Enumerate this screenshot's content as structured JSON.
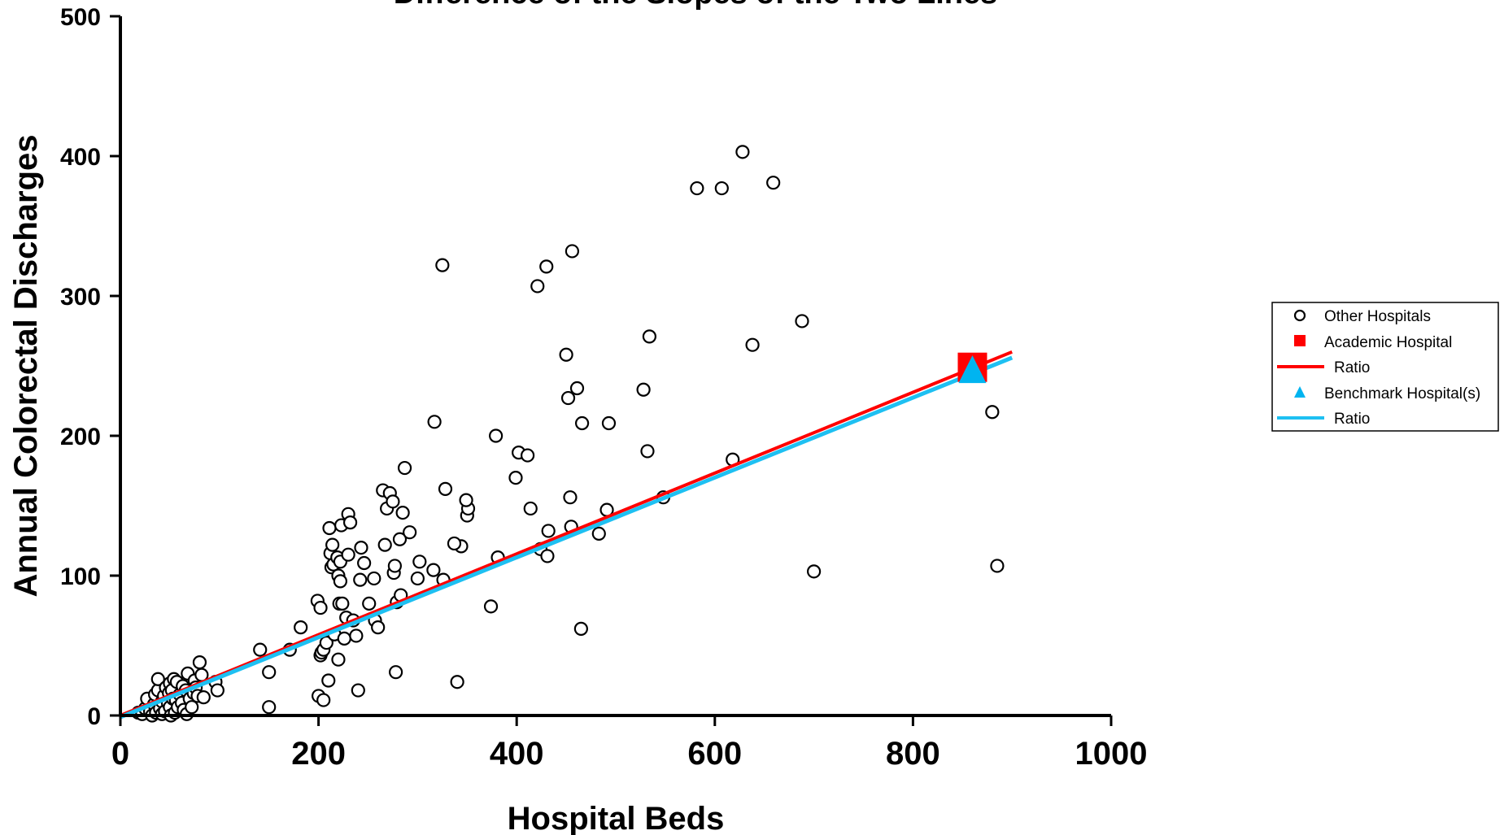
{
  "chart_data": {
    "type": "scatter",
    "title": "Difference of the Slopes of the Two Lines",
    "xlabel": "Hospital Beds",
    "ylabel": "Annual Colorectal Discharges",
    "xlim": [
      0,
      1000
    ],
    "ylim": [
      0,
      500
    ],
    "x_ticks": [
      0,
      200,
      400,
      600,
      800,
      1000
    ],
    "y_ticks": [
      0,
      100,
      200,
      300,
      400,
      500
    ],
    "grid": false,
    "legend_position": "right",
    "colors": {
      "other": "#ffffff",
      "academic": "#ff0000",
      "academic_line": "#ff0000",
      "benchmark": "#00b4f0",
      "benchmark_line": "#1ec0f2"
    },
    "series": [
      {
        "name": "Other Hospitals",
        "marker": "circle-open",
        "points": [
          [
            18,
            2
          ],
          [
            22,
            1
          ],
          [
            25,
            5
          ],
          [
            27,
            12
          ],
          [
            30,
            3
          ],
          [
            32,
            0
          ],
          [
            34,
            8
          ],
          [
            35,
            15
          ],
          [
            36,
            2
          ],
          [
            38,
            18
          ],
          [
            38,
            26
          ],
          [
            40,
            5
          ],
          [
            42,
            10
          ],
          [
            42,
            1
          ],
          [
            44,
            14
          ],
          [
            45,
            3
          ],
          [
            46,
            20
          ],
          [
            48,
            9
          ],
          [
            49,
            16
          ],
          [
            50,
            6
          ],
          [
            50,
            23
          ],
          [
            51,
            0
          ],
          [
            52,
            18
          ],
          [
            53,
            12
          ],
          [
            54,
            26
          ],
          [
            55,
            2
          ],
          [
            56,
            11
          ],
          [
            57,
            24
          ],
          [
            58,
            6
          ],
          [
            60,
            15
          ],
          [
            62,
            9
          ],
          [
            63,
            21
          ],
          [
            64,
            4
          ],
          [
            66,
            18
          ],
          [
            67,
            1
          ],
          [
            68,
            30
          ],
          [
            70,
            12
          ],
          [
            72,
            6
          ],
          [
            74,
            16
          ],
          [
            75,
            25
          ],
          [
            76,
            20
          ],
          [
            78,
            14
          ],
          [
            80,
            38
          ],
          [
            82,
            29
          ],
          [
            84,
            13
          ],
          [
            96,
            24
          ],
          [
            98,
            18
          ],
          [
            141,
            47
          ],
          [
            150,
            31
          ],
          [
            150,
            6
          ],
          [
            171,
            47
          ],
          [
            182,
            63
          ],
          [
            199,
            82
          ],
          [
            200,
            14
          ],
          [
            202,
            77
          ],
          [
            202,
            43
          ],
          [
            203,
            45
          ],
          [
            205,
            11
          ],
          [
            205,
            47
          ],
          [
            208,
            52
          ],
          [
            210,
            25
          ],
          [
            211,
            134
          ],
          [
            212,
            116
          ],
          [
            213,
            106
          ],
          [
            214,
            122
          ],
          [
            215,
            108
          ],
          [
            216,
            58
          ],
          [
            219,
            113
          ],
          [
            220,
            40
          ],
          [
            220,
            100
          ],
          [
            221,
            80
          ],
          [
            222,
            96
          ],
          [
            222,
            110
          ],
          [
            223,
            136
          ],
          [
            224,
            80
          ],
          [
            226,
            55
          ],
          [
            228,
            70
          ],
          [
            230,
            144
          ],
          [
            230,
            115
          ],
          [
            232,
            138
          ],
          [
            235,
            68
          ],
          [
            238,
            57
          ],
          [
            240,
            18
          ],
          [
            242,
            97
          ],
          [
            243,
            120
          ],
          [
            246,
            109
          ],
          [
            251,
            80
          ],
          [
            256,
            98
          ],
          [
            257,
            68
          ],
          [
            260,
            63
          ],
          [
            265,
            161
          ],
          [
            267,
            122
          ],
          [
            269,
            148
          ],
          [
            272,
            159
          ],
          [
            275,
            153
          ],
          [
            276,
            102
          ],
          [
            277,
            107
          ],
          [
            278,
            31
          ],
          [
            279,
            81
          ],
          [
            282,
            126
          ],
          [
            283,
            86
          ],
          [
            285,
            145
          ],
          [
            287,
            177
          ],
          [
            292,
            131
          ],
          [
            300,
            98
          ],
          [
            302,
            110
          ],
          [
            316,
            104
          ],
          [
            317,
            210
          ],
          [
            326,
            97
          ],
          [
            328,
            162
          ],
          [
            340,
            24
          ],
          [
            344,
            121
          ],
          [
            350,
            143
          ],
          [
            351,
            148
          ],
          [
            325,
            322
          ],
          [
            337,
            123
          ],
          [
            349,
            154
          ],
          [
            374,
            78
          ],
          [
            379,
            200
          ],
          [
            381,
            113
          ],
          [
            399,
            170
          ],
          [
            402,
            188
          ],
          [
            411,
            186
          ],
          [
            414,
            148
          ],
          [
            421,
            307
          ],
          [
            424,
            119
          ],
          [
            430,
            321
          ],
          [
            431,
            114
          ],
          [
            432,
            132
          ],
          [
            450,
            258
          ],
          [
            452,
            227
          ],
          [
            454,
            156
          ],
          [
            455,
            135
          ],
          [
            456,
            332
          ],
          [
            461,
            234
          ],
          [
            465,
            62
          ],
          [
            466,
            209
          ],
          [
            483,
            130
          ],
          [
            491,
            147
          ],
          [
            493,
            209
          ],
          [
            528,
            233
          ],
          [
            532,
            189
          ],
          [
            534,
            271
          ],
          [
            548,
            156
          ],
          [
            582,
            377
          ],
          [
            607,
            377
          ],
          [
            618,
            183
          ],
          [
            628,
            403
          ],
          [
            638,
            265
          ],
          [
            659,
            381
          ],
          [
            688,
            282
          ],
          [
            700,
            103
          ],
          [
            880,
            217
          ],
          [
            885,
            107
          ]
        ]
      },
      {
        "name": "Academic Hospital",
        "marker": "square",
        "points": [
          [
            860,
            249
          ]
        ]
      },
      {
        "name": "Ratio",
        "marker": "line",
        "line": [
          [
            0,
            0
          ],
          [
            900,
            260
          ]
        ]
      },
      {
        "name": "Benchmark Hospital(s)",
        "marker": "triangle",
        "points": [
          [
            860,
            247
          ]
        ]
      },
      {
        "name": "Ratio",
        "marker": "line",
        "line": [
          [
            0,
            0
          ],
          [
            900,
            257
          ]
        ]
      }
    ]
  }
}
